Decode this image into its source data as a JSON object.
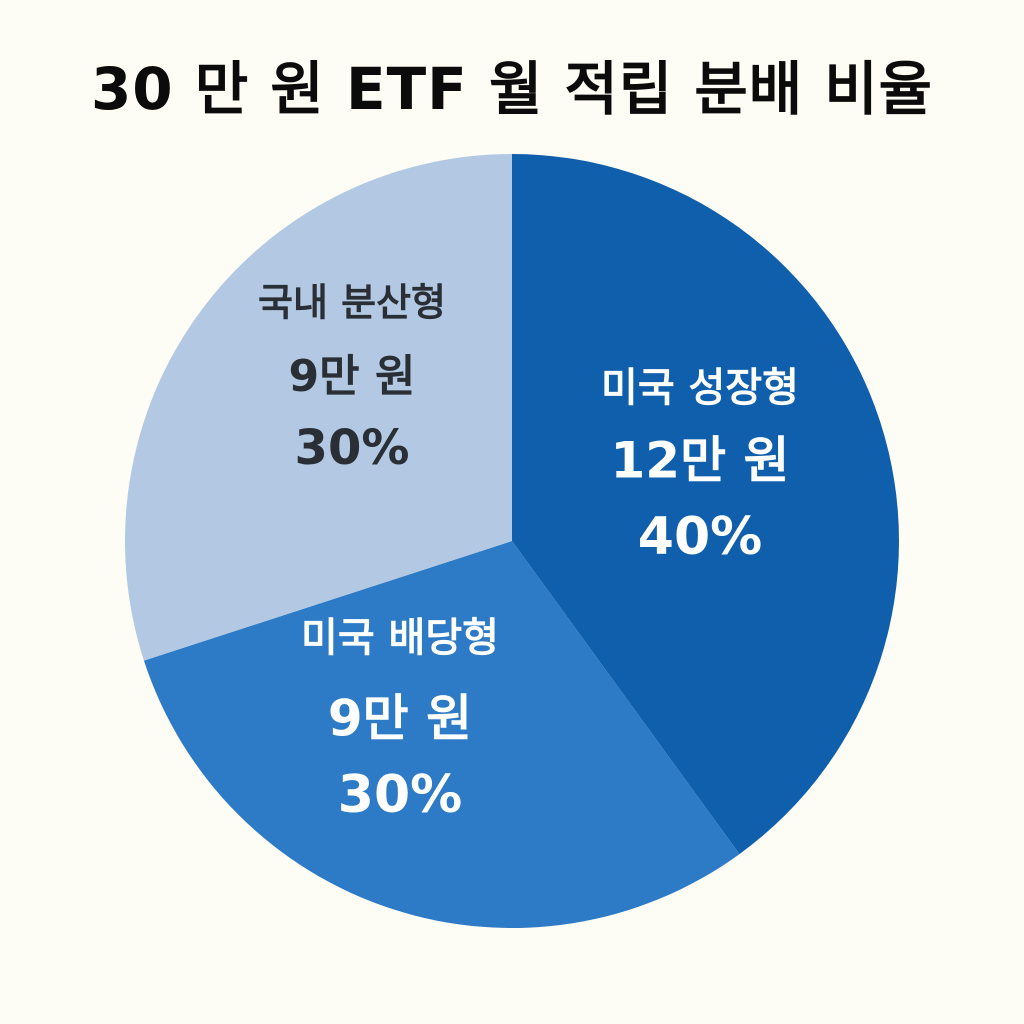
{
  "chart_data": {
    "type": "pie",
    "title": "30 만 원 ETF 월 적립 분배 비율",
    "slices": [
      {
        "name": "미국 성장형",
        "amount": "12만 원",
        "percent_label": "40%",
        "value": 40,
        "color": "#0f5fad",
        "text_color": "#ffffff"
      },
      {
        "name": "미국 배당형",
        "amount": "9만 원",
        "percent_label": "30%",
        "value": 30,
        "color": "#2d7ac6",
        "text_color": "#ffffff"
      },
      {
        "name": "국내 분산형",
        "amount": "9만 원",
        "percent_label": "30%",
        "value": 30,
        "color": "#b3c9e3",
        "text_color": "#2a2f36"
      }
    ]
  }
}
